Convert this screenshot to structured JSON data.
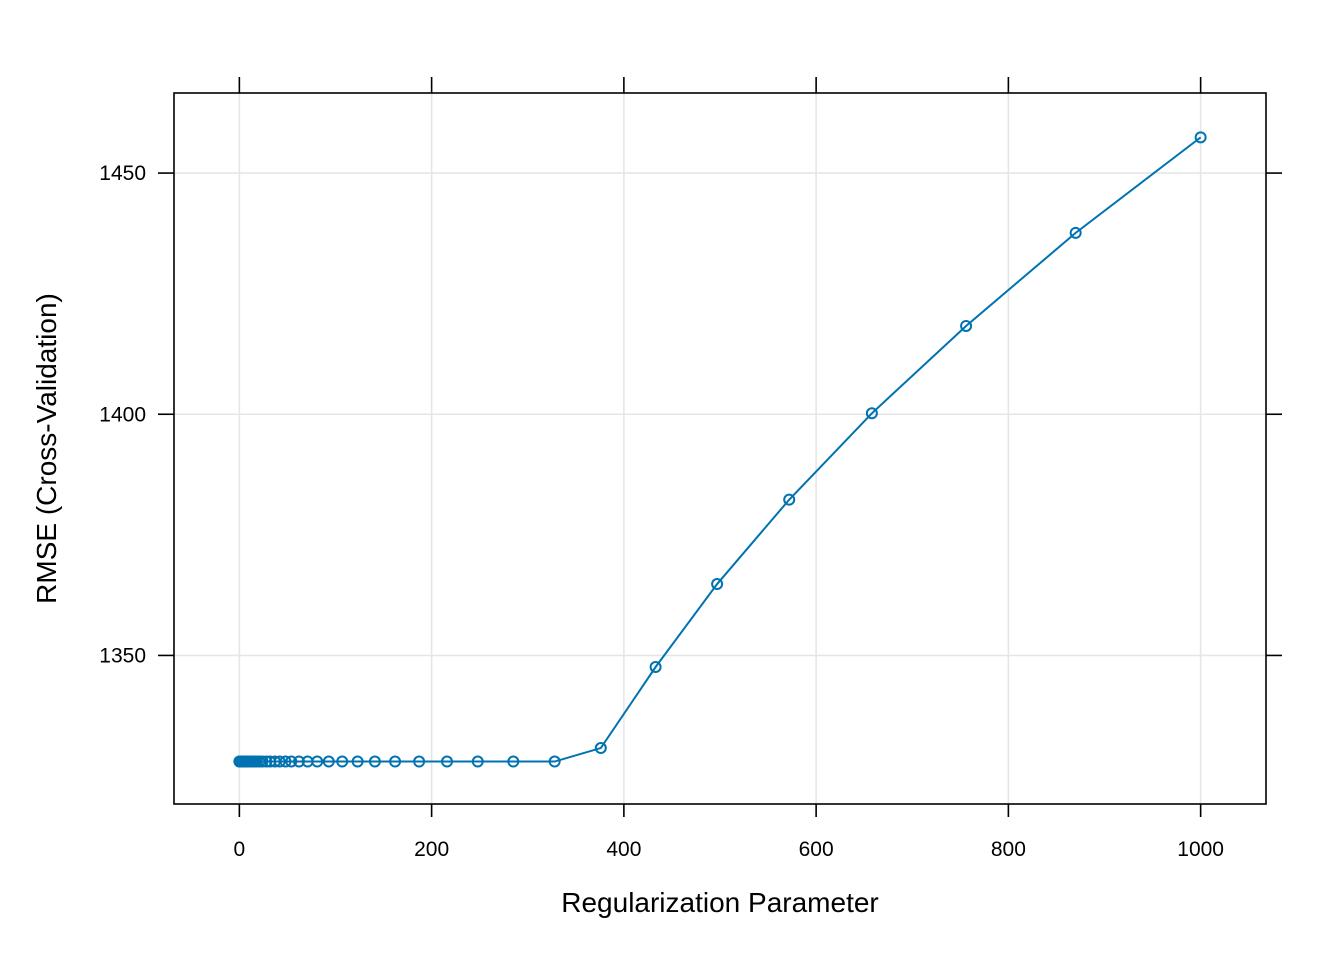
{
  "chart_data": {
    "type": "line",
    "title": "",
    "xlabel": "Regularization Parameter",
    "ylabel": "RMSE (Cross-Validation)",
    "xlim": [
      -68,
      1068
    ],
    "ylim": [
      1319.2,
      1466.6
    ],
    "xticks": [
      0,
      200,
      400,
      600,
      800,
      1000
    ],
    "yticks": [
      1350,
      1400,
      1450
    ],
    "grid": true,
    "legend": "none",
    "series": [
      {
        "color": "#0072b2",
        "marker": "open-circle",
        "x": [
          0,
          0.5,
          1,
          1.5,
          2,
          3,
          4,
          5,
          6,
          7,
          8,
          9,
          10,
          12,
          14,
          16,
          18,
          21,
          24,
          28,
          32,
          37,
          42,
          48,
          54,
          62,
          71,
          81,
          93,
          107,
          123,
          141,
          162,
          187,
          216,
          248,
          285,
          328,
          376,
          433,
          497,
          572,
          658,
          756,
          870,
          1000
        ],
        "y": [
          1328,
          1328,
          1328,
          1328,
          1328,
          1328,
          1328,
          1328,
          1328,
          1328,
          1328,
          1328,
          1328,
          1328,
          1328,
          1328,
          1328,
          1328,
          1328,
          1328,
          1328,
          1328,
          1328,
          1328,
          1328,
          1328,
          1328,
          1328,
          1328,
          1328,
          1328,
          1328,
          1328,
          1328,
          1328,
          1328,
          1328,
          1328,
          1330.8,
          1347.6,
          1364.8,
          1382.3,
          1400.2,
          1418.3,
          1437.6,
          1457.4
        ]
      }
    ]
  }
}
